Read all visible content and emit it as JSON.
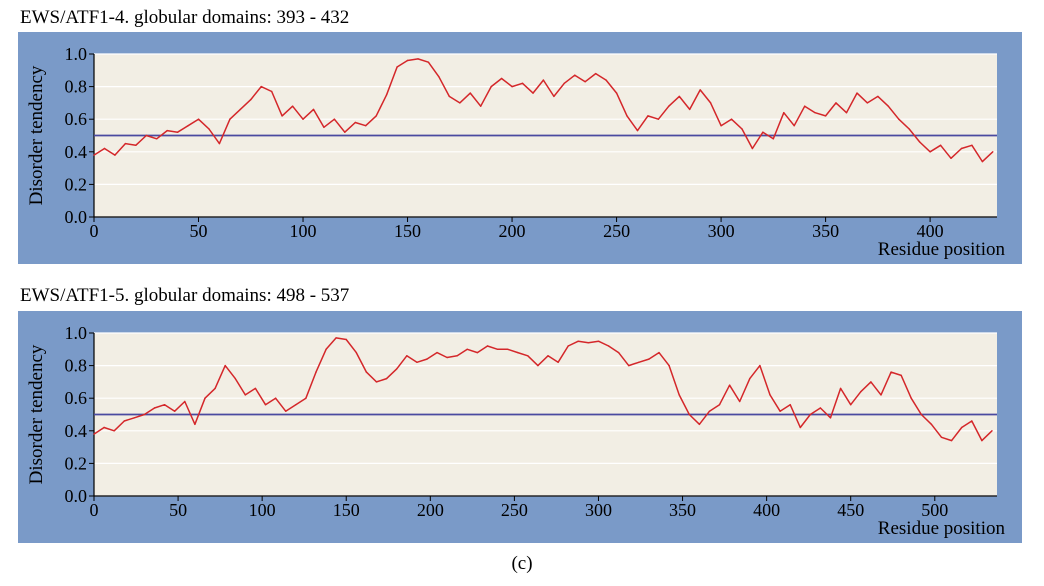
{
  "figure": {
    "caption": "(c)"
  },
  "colors": {
    "frame": "#7a9ac8",
    "plot_bg": "#f2eee4",
    "series": "#d4272a",
    "threshold": "#4a4aa0",
    "grid": "#ffffff"
  },
  "chart_data": [
    {
      "type": "line",
      "title": "EWS/ATF1-4. globular domains: 393 - 432",
      "xlabel": "Residue position",
      "ylabel": "Disorder tendency",
      "xlim": [
        0,
        432
      ],
      "ylim": [
        0,
        1
      ],
      "xticks": [
        "0",
        "50",
        "100",
        "150",
        "200",
        "250",
        "300",
        "350",
        "400"
      ],
      "yticks": [
        "0.0",
        "0.2",
        "0.4",
        "0.6",
        "0.8",
        "1.0"
      ],
      "grid": true,
      "threshold": 0.5,
      "series": [
        {
          "x": [
            0,
            5,
            10,
            15,
            20,
            25,
            30,
            35,
            40,
            45,
            50,
            55,
            60,
            65,
            70,
            75,
            80,
            85,
            90,
            95,
            100,
            105,
            110,
            115,
            120,
            125,
            130,
            135,
            140,
            145,
            150,
            155,
            160,
            165,
            170,
            175,
            180,
            185,
            190,
            195,
            200,
            205,
            210,
            215,
            220,
            225,
            230,
            235,
            240,
            245,
            250,
            255,
            260,
            265,
            270,
            275,
            280,
            285,
            290,
            295,
            300,
            305,
            310,
            315,
            320,
            325,
            330,
            335,
            340,
            345,
            350,
            355,
            360,
            365,
            370,
            375,
            380,
            385,
            390,
            395,
            400,
            405,
            410,
            415,
            420,
            425,
            430
          ],
          "y": [
            0.38,
            0.42,
            0.38,
            0.45,
            0.44,
            0.5,
            0.48,
            0.53,
            0.52,
            0.56,
            0.6,
            0.54,
            0.45,
            0.6,
            0.66,
            0.72,
            0.8,
            0.77,
            0.62,
            0.68,
            0.6,
            0.66,
            0.55,
            0.6,
            0.52,
            0.58,
            0.56,
            0.62,
            0.75,
            0.92,
            0.96,
            0.97,
            0.95,
            0.86,
            0.74,
            0.7,
            0.76,
            0.68,
            0.8,
            0.85,
            0.8,
            0.82,
            0.76,
            0.84,
            0.74,
            0.82,
            0.87,
            0.83,
            0.88,
            0.84,
            0.76,
            0.62,
            0.53,
            0.62,
            0.6,
            0.68,
            0.74,
            0.66,
            0.78,
            0.7,
            0.56,
            0.6,
            0.54,
            0.42,
            0.52,
            0.48,
            0.64,
            0.56,
            0.68,
            0.64,
            0.62,
            0.7,
            0.64,
            0.76,
            0.7,
            0.74,
            0.68,
            0.6,
            0.54,
            0.46,
            0.4,
            0.44,
            0.36,
            0.42,
            0.44,
            0.34,
            0.4
          ]
        }
      ]
    },
    {
      "type": "line",
      "title": "EWS/ATF1-5. globular domains: 498 - 537",
      "xlabel": "Residue position",
      "ylabel": "Disorder tendency",
      "xlim": [
        0,
        537
      ],
      "ylim": [
        0,
        1
      ],
      "xticks": [
        "0",
        "50",
        "100",
        "150",
        "200",
        "250",
        "300",
        "350",
        "400",
        "450",
        "500"
      ],
      "yticks": [
        "0.0",
        "0.2",
        "0.4",
        "0.6",
        "0.8",
        "1.0"
      ],
      "grid": true,
      "threshold": 0.5,
      "series": [
        {
          "x": [
            0,
            6,
            12,
            18,
            24,
            30,
            36,
            42,
            48,
            54,
            60,
            66,
            72,
            78,
            84,
            90,
            96,
            102,
            108,
            114,
            120,
            126,
            132,
            138,
            144,
            150,
            156,
            162,
            168,
            174,
            180,
            186,
            192,
            198,
            204,
            210,
            216,
            222,
            228,
            234,
            240,
            246,
            252,
            258,
            264,
            270,
            276,
            282,
            288,
            294,
            300,
            306,
            312,
            318,
            324,
            330,
            336,
            342,
            348,
            354,
            360,
            366,
            372,
            378,
            384,
            390,
            396,
            402,
            408,
            414,
            420,
            426,
            432,
            438,
            444,
            450,
            456,
            462,
            468,
            474,
            480,
            486,
            492,
            498,
            504,
            510,
            516,
            522,
            528,
            534
          ],
          "y": [
            0.38,
            0.42,
            0.4,
            0.46,
            0.48,
            0.5,
            0.54,
            0.56,
            0.52,
            0.58,
            0.44,
            0.6,
            0.66,
            0.8,
            0.72,
            0.62,
            0.66,
            0.56,
            0.6,
            0.52,
            0.56,
            0.6,
            0.76,
            0.9,
            0.97,
            0.96,
            0.88,
            0.76,
            0.7,
            0.72,
            0.78,
            0.86,
            0.82,
            0.84,
            0.88,
            0.85,
            0.86,
            0.9,
            0.88,
            0.92,
            0.9,
            0.9,
            0.88,
            0.86,
            0.8,
            0.86,
            0.82,
            0.92,
            0.95,
            0.94,
            0.95,
            0.92,
            0.88,
            0.8,
            0.82,
            0.84,
            0.88,
            0.8,
            0.62,
            0.5,
            0.44,
            0.52,
            0.56,
            0.68,
            0.58,
            0.72,
            0.8,
            0.62,
            0.52,
            0.56,
            0.42,
            0.5,
            0.54,
            0.48,
            0.66,
            0.56,
            0.64,
            0.7,
            0.62,
            0.76,
            0.74,
            0.6,
            0.5,
            0.44,
            0.36,
            0.34,
            0.42,
            0.46,
            0.34,
            0.4
          ]
        }
      ]
    }
  ]
}
